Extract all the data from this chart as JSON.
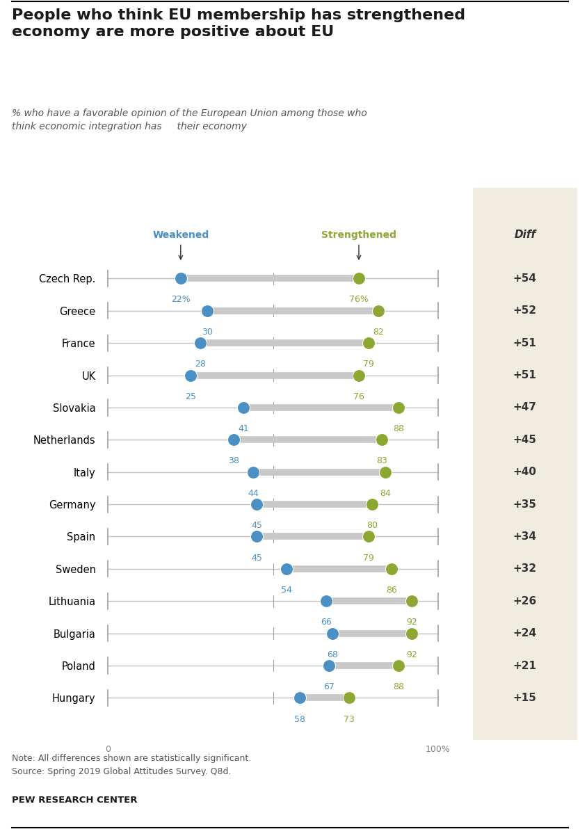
{
  "title": "People who think EU membership has strengthened\neconomy are more positive about EU",
  "subtitle": "% who have a favorable opinion of the European Union among those who\nthink economic integration has     their economy",
  "countries": [
    "Czech Rep.",
    "Greece",
    "France",
    "UK",
    "Slovakia",
    "Netherlands",
    "Italy",
    "Germany",
    "Spain",
    "Sweden",
    "Lithuania",
    "Bulgaria",
    "Poland",
    "Hungary"
  ],
  "weakened": [
    22,
    30,
    28,
    25,
    41,
    38,
    44,
    45,
    45,
    54,
    66,
    68,
    67,
    58
  ],
  "strengthened": [
    76,
    82,
    79,
    76,
    88,
    83,
    84,
    80,
    79,
    86,
    92,
    92,
    88,
    73
  ],
  "diff": [
    "+54",
    "+52",
    "+51",
    "+51",
    "+47",
    "+45",
    "+40",
    "+35",
    "+34",
    "+32",
    "+26",
    "+24",
    "+21",
    "+15"
  ],
  "weakened_color": "#4a90c4",
  "strengthened_color": "#8ca832",
  "thick_line_color": "#c8c8c8",
  "thin_line_color": "#c0c0c0",
  "tick_color": "#a0a0a0",
  "diff_bg_color": "#f0ece0",
  "note_line1": "Note: All differences shown are statistically significant.",
  "note_line2": "Source: Spring 2019 Global Attitudes Survey. Q8d.",
  "source": "PEW RESEARCH CENTER",
  "weakened_label": "Weakened",
  "strengthened_label": "Strengthened",
  "diff_label": "Diff"
}
